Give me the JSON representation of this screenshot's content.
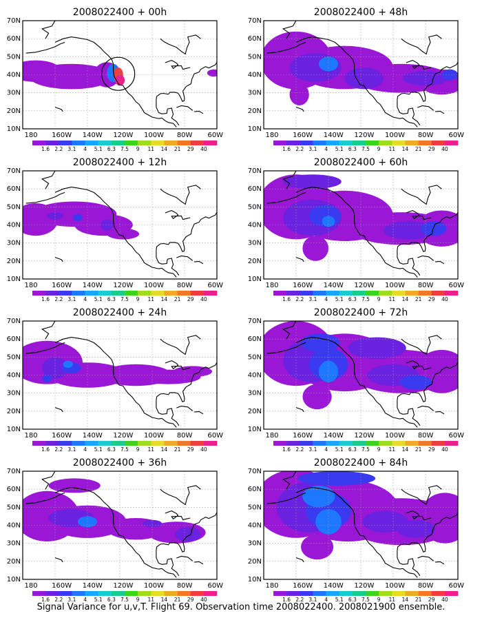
{
  "map_panels": [
    {
      "title": "2008022400 + 00h",
      "lead": "00h"
    },
    {
      "title": "2008022400 + 48h",
      "lead": "48h"
    },
    {
      "title": "2008022400 + 12h",
      "lead": "12h"
    },
    {
      "title": "2008022400 + 60h",
      "lead": "60h"
    },
    {
      "title": "2008022400 + 24h",
      "lead": "24h"
    },
    {
      "title": "2008022400 + 72h",
      "lead": "72h"
    },
    {
      "title": "2008022400 + 36h",
      "lead": "36h"
    },
    {
      "title": "2008022400 + 84h",
      "lead": "84h"
    }
  ],
  "lon_labels": [
    "180",
    "160W",
    "140W",
    "120W",
    "100W",
    "80W",
    "60W"
  ],
  "lat_labels": [
    "10N",
    "20N",
    "30N",
    "40N",
    "50N",
    "60N",
    "70N"
  ],
  "colorbar": {
    "labels": [
      "1.6",
      "2.2",
      "3.1",
      "4",
      "5.1",
      "6.3",
      "7.5",
      "9",
      "11",
      "14",
      "21",
      "29",
      "40"
    ],
    "colors": [
      "#9a17d6",
      "#6a22e0",
      "#3a3af0",
      "#1e78ff",
      "#19a6ff",
      "#19ccd2",
      "#19cc8c",
      "#3cd21e",
      "#a0dc1e",
      "#e6dc28",
      "#f0aa28",
      "#f07828",
      "#f03c3c",
      "#f01e8c"
    ]
  },
  "caption": "Signal Variance for u,v,T. Flight 69. Observation time 2008022400. 2008021900 ensemble."
}
